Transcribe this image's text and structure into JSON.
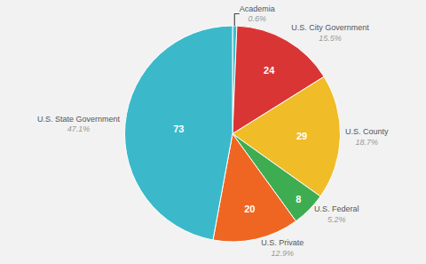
{
  "chart_data": {
    "type": "pie",
    "categories": [
      "Academia",
      "U.S. City Government",
      "U.S. County",
      "U.S. Federal",
      "U.S. Private",
      "U.S. State Government"
    ],
    "values": [
      1,
      24,
      29,
      8,
      20,
      73
    ],
    "value_labels": [
      null,
      "24",
      "29",
      "8",
      "20",
      "73"
    ],
    "percentages": [
      0.6,
      15.5,
      18.7,
      5.2,
      12.9,
      47.1
    ],
    "percentage_labels": [
      "0.6%",
      "15.5%",
      "18.7%",
      "5.2%",
      "12.9%",
      "47.1%"
    ],
    "colors": [
      "#3ABFCE",
      "#D93535",
      "#F0BC28",
      "#3EAD52",
      "#EF6622",
      "#3BB9CA"
    ],
    "data_labels": true
  }
}
